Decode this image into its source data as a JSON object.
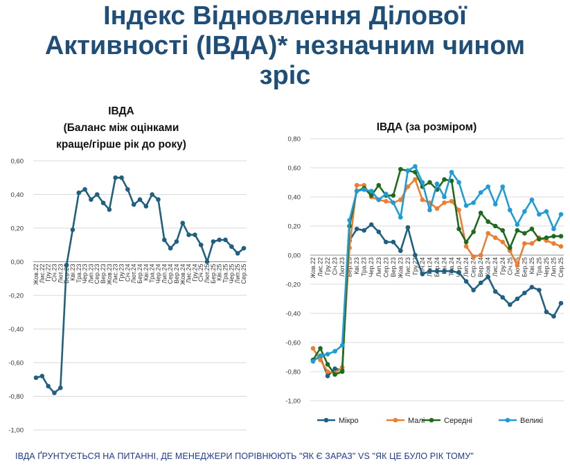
{
  "title": {
    "line1": "Індекс Відновлення Ділової",
    "line2": "Активності (ІВДА)* незначним чином",
    "line3": "зріс"
  },
  "footnote": "ІВДА ҐРУНТУЄТЬСЯ НА ПИТАННІ, ДЕ МЕНЕДЖЕРИ ПОРІВНЮЮТЬ \"ЯК Є ЗАРАЗ\" VS \"ЯК ЦЕ БУЛО РІК ТОМУ\"",
  "chart_data": [
    {
      "type": "line",
      "title_lines": [
        "ІВДА",
        "(Баланс між оцінками",
        "краще/гірше рік до року)"
      ],
      "ylim": [
        -1.0,
        0.6
      ],
      "yticks": [
        "0,60",
        "0,40",
        "0,20",
        "0,00",
        "-0,20",
        "-0,40",
        "-0,60",
        "-0,80",
        "-1,00"
      ],
      "categories": [
        "Жов.22",
        "Лис.22",
        "Гру.22",
        "Січ.23",
        "Лют.23",
        "Бер.23",
        "Кві.23",
        "Тра.23",
        "Чер.23",
        "Лип.23",
        "Сер.23",
        "Вер.23",
        "Жов.23",
        "Лис.23",
        "Гру.23",
        "Січ.24",
        "Лют.24",
        "Бер.24",
        "Кві.24",
        "Тра.24",
        "Чер.24",
        "Лип.24",
        "Сер.24",
        "Вер.24",
        "Жов.24",
        "Лис.24",
        "Гру.24",
        "Січ.25",
        "Лют.25",
        "Бер.25",
        "Кві.25",
        "Тра.25",
        "Чер.25",
        "Лип.25",
        "Сер.25"
      ],
      "x_tick_labels": [
        "Жов.22",
        "Лис.22",
        "Гру.22",
        "Січ.23",
        "Лют.23",
        "Бер.23",
        "Кві.23",
        "Тра.23",
        "Чер.23",
        "Лип.23",
        "Сер.23",
        "Вер.23",
        "Жов.23",
        "Лис.23",
        "Гру.23",
        "Січ.24",
        "Лют.24",
        "Бер.24",
        "Кві.24",
        "Тра.24",
        "Чер.24",
        "Лип.24",
        "Сер.24",
        "Вер.24",
        "Жов.24",
        "Лис.24",
        "Гру.24",
        "Січ.25",
        "Лют.25",
        "Бер.25",
        "Кві.25",
        "Тра.25",
        "Чер.25",
        "Лип.25",
        "Сер.25"
      ],
      "series": [
        {
          "name": "ІВДА",
          "color": "#1f5f7f",
          "values": [
            -0.69,
            -0.68,
            -0.74,
            -0.78,
            -0.75,
            -0.02,
            0.19,
            0.41,
            0.43,
            0.37,
            0.4,
            0.35,
            0.31,
            0.5,
            0.5,
            0.43,
            0.34,
            0.37,
            0.33,
            0.4,
            0.37,
            0.13,
            0.08,
            0.12,
            0.23,
            0.16,
            0.16,
            0.1,
            0.0,
            0.12,
            0.13,
            0.13,
            0.09,
            0.05,
            0.08
          ]
        }
      ],
      "legend": "none"
    },
    {
      "type": "line",
      "title_lines": [
        "ІВДА (за розміром)"
      ],
      "ylim": [
        -1.0,
        0.8
      ],
      "yticks": [
        "0,80",
        "0,60",
        "0,40",
        "0,20",
        "0,00",
        "-0,20",
        "-0,40",
        "-0,60",
        "-0,80",
        "-1,00"
      ],
      "categories": [
        "Жов.22",
        "Лис.22",
        "Гру.22",
        "Січ.23",
        "Лют.23",
        "Бер.23",
        "Кві.23",
        "Тра.23",
        "Чер.23",
        "Лип.23",
        "Сер.23",
        "Вер.23",
        "Жов.23",
        "Лис.23",
        "Гру.23",
        "Січ.24",
        "Лют.24",
        "Бер.24",
        "Кві.24",
        "Тра.24",
        "Чер.24",
        "Лип.24",
        "Сер.24",
        "Вер.24",
        "Жов.24",
        "Лис.24",
        "Гру.24",
        "Січ.25",
        "Лют.25",
        "Бер.25",
        "Кві.25",
        "Тра.25",
        "Чер.25",
        "Лип.25",
        "Сер.25"
      ],
      "x_tick_labels": [
        "Жов.22",
        "Лис.22",
        "Гру.22",
        "Січ.23",
        "Лют.23",
        "Бер.23",
        "Кві.23",
        "Тра.23",
        "Чер.23",
        "Лип.23",
        "Сер.23",
        "Вер.23",
        "Жов.23",
        "Лис.23",
        "Гру.23",
        "Січ.24",
        "Лют.24",
        "Бер.24",
        "Кві.24",
        "Тра.24",
        "Чер.24",
        "Лип.24",
        "Сер.24",
        "Вер.24",
        "Жов.24",
        "Лис.24",
        "Гру.24",
        "Січ.25",
        "Лют.25",
        "Бер.25",
        "Кві.25",
        "Тра.25",
        "Чер.25",
        "Лип.25",
        "Сер.25"
      ],
      "series": [
        {
          "name": "Мікро",
          "color": "#1f5f7f",
          "values": [
            -0.72,
            -0.7,
            -0.83,
            -0.78,
            -0.79,
            0.1,
            0.18,
            0.17,
            0.21,
            0.16,
            0.09,
            0.09,
            0.03,
            0.19,
            0.0,
            -0.13,
            -0.11,
            -0.11,
            -0.11,
            -0.11,
            -0.12,
            -0.18,
            -0.24,
            -0.19,
            -0.15,
            -0.25,
            -0.29,
            -0.34,
            -0.3,
            -0.26,
            -0.22,
            -0.24,
            -0.39,
            -0.42,
            -0.33
          ]
        },
        {
          "name": "Малі",
          "color": "#ed7d31",
          "values": [
            -0.64,
            -0.72,
            -0.8,
            -0.81,
            -0.77,
            0.05,
            0.48,
            0.48,
            0.4,
            0.38,
            0.37,
            0.36,
            0.38,
            0.47,
            0.52,
            0.38,
            0.36,
            0.32,
            0.36,
            0.37,
            0.31,
            0.06,
            -0.01,
            0.0,
            0.15,
            0.12,
            0.09,
            0.03,
            -0.07,
            0.08,
            0.08,
            0.12,
            0.1,
            0.08,
            0.06
          ]
        },
        {
          "name": "Середні",
          "color": "#1e6b1e",
          "values": [
            -0.72,
            -0.64,
            -0.75,
            -0.82,
            -0.8,
            0.2,
            0.44,
            0.46,
            0.41,
            0.48,
            0.41,
            0.41,
            0.59,
            0.58,
            0.57,
            0.47,
            0.5,
            0.45,
            0.52,
            0.51,
            0.18,
            0.09,
            0.16,
            0.29,
            0.23,
            0.2,
            0.17,
            0.05,
            0.17,
            0.15,
            0.18,
            0.11,
            0.12,
            0.13,
            0.13
          ]
        },
        {
          "name": "Великі",
          "color": "#1f9bd7",
          "values": [
            -0.73,
            -0.69,
            -0.68,
            -0.66,
            -0.62,
            0.24,
            0.44,
            0.45,
            0.44,
            0.38,
            0.42,
            0.36,
            0.26,
            0.58,
            0.61,
            0.5,
            0.31,
            0.49,
            0.4,
            0.57,
            0.5,
            0.34,
            0.36,
            0.43,
            0.47,
            0.35,
            0.47,
            0.31,
            0.21,
            0.3,
            0.38,
            0.28,
            0.3,
            0.18,
            0.28
          ]
        }
      ],
      "legend": "bottom"
    }
  ]
}
